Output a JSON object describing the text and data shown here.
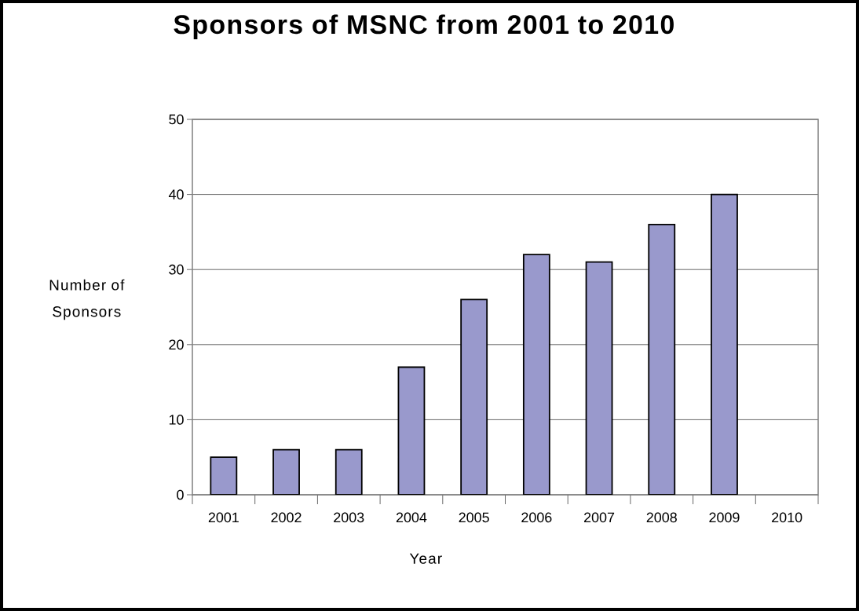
{
  "chart_data": {
    "type": "bar",
    "title": "Sponsors of MSNC from 2001 to 2010",
    "xlabel": "Year",
    "ylabel": "Number of Sponsors",
    "categories": [
      "2001",
      "2002",
      "2003",
      "2004",
      "2005",
      "2006",
      "2007",
      "2008",
      "2009",
      "2010"
    ],
    "values": [
      5,
      6,
      6,
      17,
      26,
      32,
      31,
      36,
      40,
      null
    ],
    "color": "#9999cc",
    "ylim": [
      0,
      50
    ],
    "yticks": [
      0,
      10,
      20,
      30,
      40,
      50
    ],
    "grid": "y"
  }
}
